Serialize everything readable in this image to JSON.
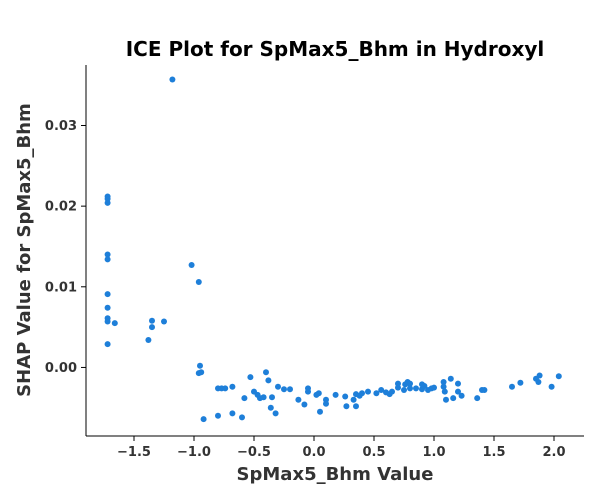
{
  "chart_data": {
    "type": "scatter",
    "title": "ICE Plot for SpMax5_Bhm in Hydroxyl",
    "xlabel": "SpMax5_Bhm Value",
    "ylabel": "SHAP Value for SpMax5_Bhm",
    "xlim": [
      -1.9,
      2.25
    ],
    "ylim": [
      -0.0085,
      0.0375
    ],
    "xticks": [
      -1.5,
      -1.0,
      -0.5,
      0.0,
      0.5,
      1.0,
      1.5,
      2.0
    ],
    "xtick_labels": [
      "−1.5",
      "−1.0",
      "−0.5",
      "0.0",
      "0.5",
      "1.0",
      "1.5",
      "2.0"
    ],
    "yticks": [
      0.0,
      0.01,
      0.02,
      0.03
    ],
    "ytick_labels": [
      "0.00",
      "0.01",
      "0.02",
      "0.03"
    ],
    "grid": false,
    "legend": "none",
    "color": "#1e7fd9",
    "points": [
      [
        -1.72,
        0.0212
      ],
      [
        -1.72,
        0.0209
      ],
      [
        -1.72,
        0.0204
      ],
      [
        -1.72,
        0.014
      ],
      [
        -1.72,
        0.0134
      ],
      [
        -1.72,
        0.0091
      ],
      [
        -1.72,
        0.0074
      ],
      [
        -1.72,
        0.0061
      ],
      [
        -1.72,
        0.0057
      ],
      [
        -1.72,
        0.0029
      ],
      [
        -1.66,
        0.0055
      ],
      [
        -1.38,
        0.0034
      ],
      [
        -1.35,
        0.0058
      ],
      [
        -1.35,
        0.005
      ],
      [
        -1.25,
        0.0057
      ],
      [
        -1.18,
        0.0357
      ],
      [
        -1.02,
        0.0127
      ],
      [
        -0.96,
        0.0106
      ],
      [
        -0.95,
        0.0002
      ],
      [
        -0.96,
        -0.0007
      ],
      [
        -0.94,
        -0.0006
      ],
      [
        -0.92,
        -0.0064
      ],
      [
        -0.8,
        -0.0026
      ],
      [
        -0.8,
        -0.006
      ],
      [
        -0.77,
        -0.0026
      ],
      [
        -0.74,
        -0.0026
      ],
      [
        -0.68,
        -0.0024
      ],
      [
        -0.68,
        -0.0057
      ],
      [
        -0.6,
        -0.0062
      ],
      [
        -0.58,
        -0.0038
      ],
      [
        -0.53,
        -0.0012
      ],
      [
        -0.5,
        -0.003
      ],
      [
        -0.47,
        -0.0034
      ],
      [
        -0.45,
        -0.0038
      ],
      [
        -0.42,
        -0.0037
      ],
      [
        -0.4,
        -0.0006
      ],
      [
        -0.38,
        -0.0016
      ],
      [
        -0.36,
        -0.005
      ],
      [
        -0.35,
        -0.0037
      ],
      [
        -0.32,
        -0.0057
      ],
      [
        -0.3,
        -0.0024
      ],
      [
        -0.25,
        -0.0027
      ],
      [
        -0.2,
        -0.0027
      ],
      [
        -0.13,
        -0.004
      ],
      [
        -0.08,
        -0.0046
      ],
      [
        -0.05,
        -0.0026
      ],
      [
        -0.05,
        -0.003
      ],
      [
        0.02,
        -0.0034
      ],
      [
        0.04,
        -0.0032
      ],
      [
        0.05,
        -0.0055
      ],
      [
        0.1,
        -0.004
      ],
      [
        0.1,
        -0.0045
      ],
      [
        0.18,
        -0.0034
      ],
      [
        0.26,
        -0.0036
      ],
      [
        0.27,
        -0.0048
      ],
      [
        0.33,
        -0.004
      ],
      [
        0.35,
        -0.0033
      ],
      [
        0.35,
        -0.0048
      ],
      [
        0.38,
        -0.0035
      ],
      [
        0.4,
        -0.0032
      ],
      [
        0.45,
        -0.003
      ],
      [
        0.52,
        -0.0032
      ],
      [
        0.56,
        -0.0028
      ],
      [
        0.6,
        -0.0031
      ],
      [
        0.63,
        -0.0033
      ],
      [
        0.65,
        -0.003
      ],
      [
        0.7,
        -0.0025
      ],
      [
        0.7,
        -0.002
      ],
      [
        0.75,
        -0.0028
      ],
      [
        0.76,
        -0.0021
      ],
      [
        0.78,
        -0.0018
      ],
      [
        0.8,
        -0.002
      ],
      [
        0.8,
        -0.0026
      ],
      [
        0.85,
        -0.0026
      ],
      [
        0.9,
        -0.0027
      ],
      [
        0.9,
        -0.0021
      ],
      [
        0.92,
        -0.0023
      ],
      [
        0.95,
        -0.0028
      ],
      [
        0.98,
        -0.0026
      ],
      [
        1.0,
        -0.0025
      ],
      [
        1.08,
        -0.0018
      ],
      [
        1.08,
        -0.0024
      ],
      [
        1.09,
        -0.003
      ],
      [
        1.1,
        -0.004
      ],
      [
        1.14,
        -0.0014
      ],
      [
        1.16,
        -0.0038
      ],
      [
        1.2,
        -0.002
      ],
      [
        1.2,
        -0.003
      ],
      [
        1.23,
        -0.0035
      ],
      [
        1.36,
        -0.0038
      ],
      [
        1.4,
        -0.0028
      ],
      [
        1.42,
        -0.0028
      ],
      [
        1.65,
        -0.0024
      ],
      [
        1.72,
        -0.0019
      ],
      [
        1.85,
        -0.0014
      ],
      [
        1.87,
        -0.0018
      ],
      [
        1.88,
        -0.001
      ],
      [
        1.98,
        -0.0024
      ],
      [
        2.04,
        -0.0011
      ]
    ]
  }
}
